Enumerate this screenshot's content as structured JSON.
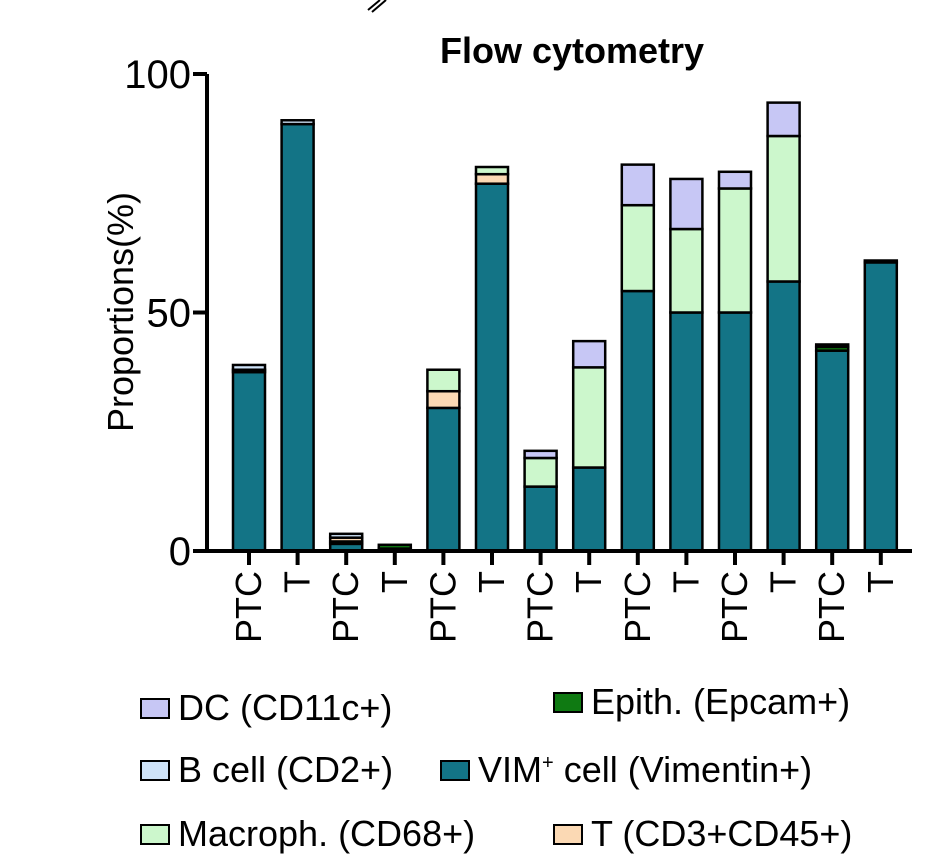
{
  "chart_data": {
    "type": "bar",
    "stacked": true,
    "title": "Flow cytometry",
    "xlabel": "",
    "ylabel": "Proportions(%)",
    "ylim": [
      0,
      100
    ],
    "yticks": [
      0,
      50,
      100
    ],
    "categories": [
      "PTC",
      "T",
      "PTC",
      "T",
      "PTC",
      "T",
      "PTC",
      "T",
      "PTC",
      "T",
      "PTC",
      "T",
      "PTC",
      "T"
    ],
    "series": [
      {
        "name": "VIM⁺ cell (Vimentin+)",
        "color": "#137486",
        "values": [
          37.5,
          89.5,
          1.5,
          0.5,
          30.0,
          77.0,
          13.5,
          17.5,
          54.5,
          50.0,
          50.0,
          56.5,
          42.0,
          60.5
        ]
      },
      {
        "name": "Epith. (Epcam+)",
        "color": "#0f7a12",
        "values": [
          0.5,
          0,
          0.5,
          0.8,
          0,
          0,
          0,
          0,
          0,
          0,
          0,
          0,
          0.8,
          0
        ]
      },
      {
        "name": "T (CD3+CD45+)",
        "color": "#fbd9b4",
        "values": [
          0,
          0,
          0.8,
          0,
          3.5,
          2.0,
          0,
          0,
          0,
          0,
          0,
          0,
          0,
          0
        ]
      },
      {
        "name": "Macroph. (CD68+)",
        "color": "#ccf7cc",
        "values": [
          0,
          0,
          0,
          0,
          4.5,
          1.5,
          6.0,
          21.0,
          18.0,
          17.5,
          26.0,
          30.5,
          0,
          0
        ]
      },
      {
        "name": "B cell (CD2+)",
        "color": "#cfe3f8",
        "values": [
          1.0,
          0.8,
          0.8,
          0,
          0,
          0,
          0,
          0,
          0,
          0,
          0,
          0,
          0.5,
          0.4
        ]
      },
      {
        "name": "DC (CD11c+)",
        "color": "#c7c7f5",
        "values": [
          0,
          0,
          0,
          0,
          0,
          0,
          1.5,
          5.5,
          8.5,
          10.5,
          3.5,
          7.0,
          0,
          0
        ]
      }
    ],
    "legend": [
      {
        "label": "DC (CD11c+)",
        "color": "#c7c7f5"
      },
      {
        "label": "Epith. (Epcam+)",
        "color": "#0f7a12"
      },
      {
        "label": "B cell (CD2+)",
        "color": "#cfe3f8"
      },
      {
        "label_main": "VIM",
        "label_sup": "+",
        "label_rest": " cell (Vimentin+)",
        "color": "#137486"
      },
      {
        "label": "Macroph. (CD68+)",
        "color": "#ccf7cc"
      },
      {
        "label": "T (CD3+CD45+)",
        "color": "#fbd9b4"
      }
    ],
    "legend_position": "bottom"
  }
}
